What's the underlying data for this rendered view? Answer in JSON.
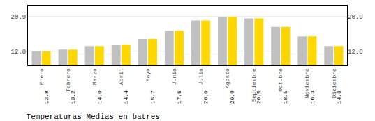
{
  "chart_data": {
    "type": "bar",
    "title": "Temperaturas Medias en batres",
    "categories": [
      "Enero",
      "Febrero",
      "Marzo",
      "Abril",
      "Mayo",
      "Junio",
      "Julio",
      "Agosto",
      "Septiembre",
      "Octubre",
      "Noviembre",
      "Diciembre"
    ],
    "series": [
      {
        "color": "#C0C0C0",
        "values": [
          12.8,
          13.2,
          14.0,
          14.4,
          15.7,
          17.6,
          20.0,
          20.9,
          20.5,
          18.5,
          16.3,
          14.0
        ]
      },
      {
        "color": "#FFD700",
        "values": [
          12.8,
          13.2,
          14.0,
          14.4,
          15.7,
          17.6,
          20.0,
          20.9,
          20.5,
          18.5,
          16.3,
          14.0
        ],
        "value_labels": [
          "12.8",
          "13.2",
          "14.0",
          "14.4",
          "15.7",
          "17.6",
          "20.0",
          "20.9",
          "20.5",
          "18.5",
          "16.3",
          "14.0"
        ],
        "data_labels": true
      }
    ],
    "ylim": [
      9.5,
      23.5
    ],
    "yticks": [
      12.8,
      20.9
    ],
    "y2lim": [
      9.5,
      23.5
    ],
    "y2ticks": [
      12.8,
      20.9
    ],
    "grid": true
  }
}
